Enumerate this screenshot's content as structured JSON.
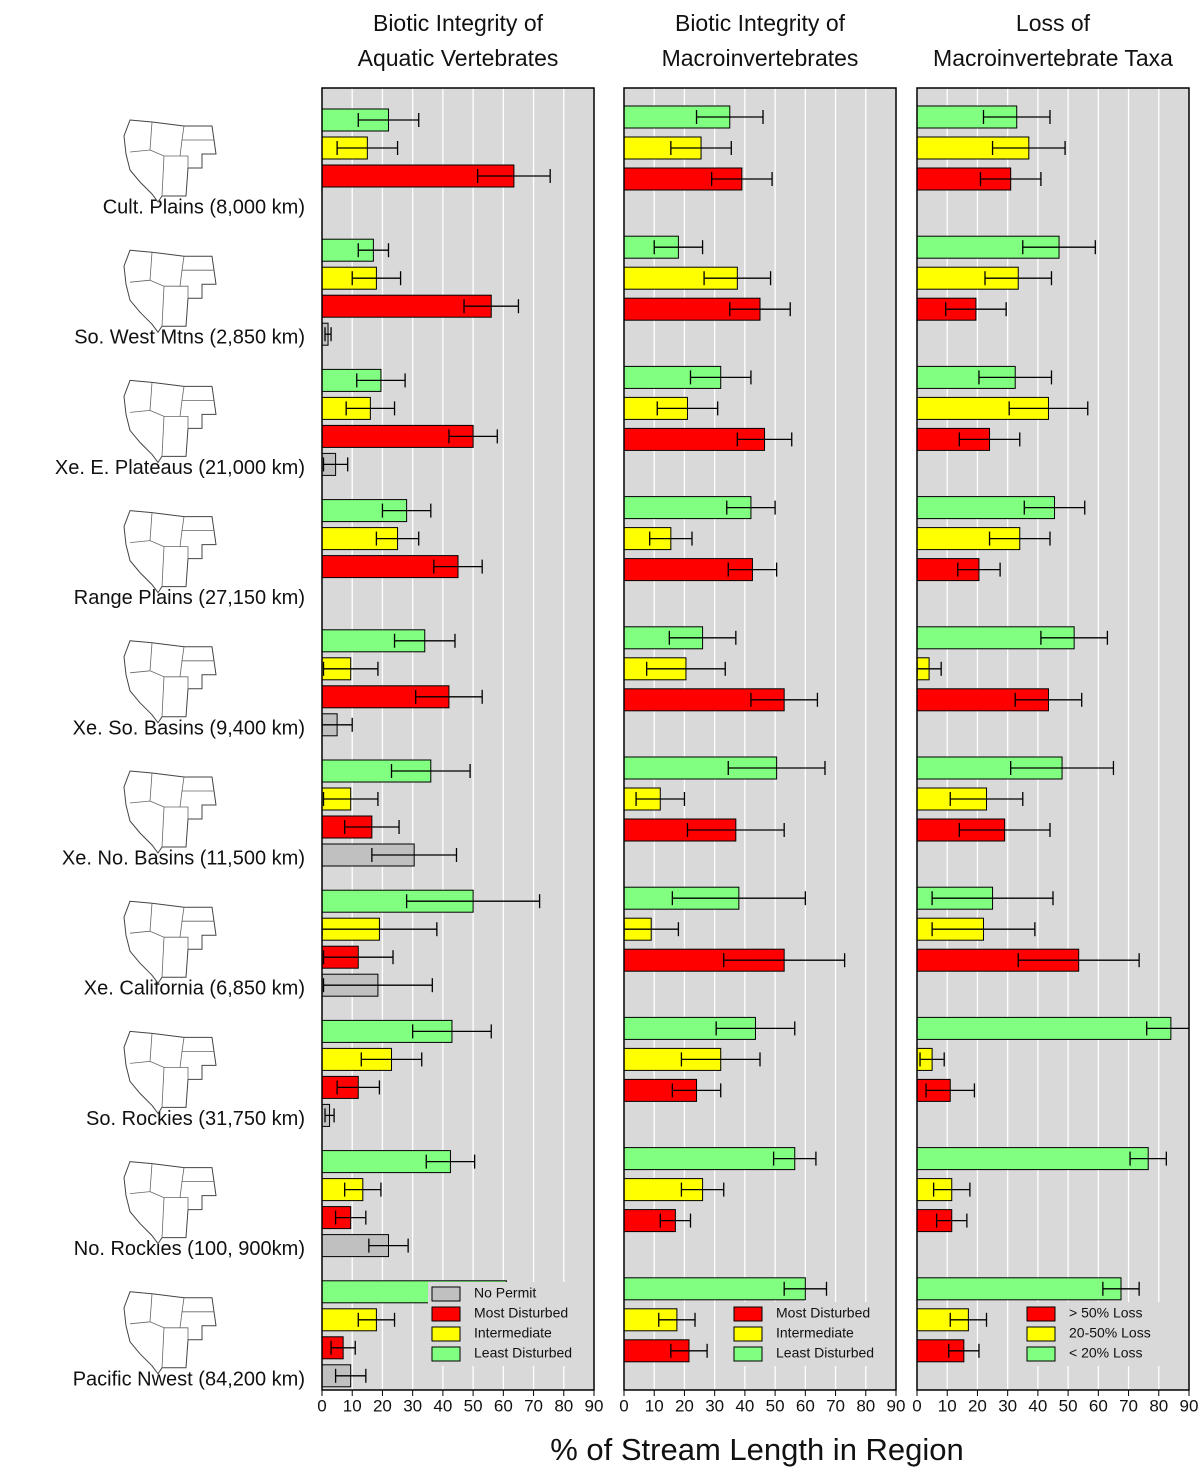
{
  "axis_label": "% of Stream Length in Region",
  "chart_data": [
    {
      "type": "bar",
      "orientation": "horizontal",
      "title": [
        "Biotic Integrity of",
        "Aquatic Vertebrates"
      ],
      "categories": [
        "Cult. Plains (8,000 km)",
        "So. West Mtns (2,850 km)",
        "Xe. E. Plateaus (21,000 km)",
        "Range Plains (27,150 km)",
        "Xe. So. Basins (9,400 km)",
        "Xe. No. Basins (11,500 km)",
        "Xe. California (6,850 km)",
        "So. Rockies (31,750 km)",
        "No. Rockies (100, 900km)",
        "Pacific Nwest (84,200 km)"
      ],
      "xlim": [
        0,
        90
      ],
      "xticks": [
        0,
        10,
        20,
        30,
        40,
        50,
        60,
        70,
        80,
        90
      ],
      "grid": true,
      "legend": "lower right",
      "series": [
        {
          "name": "No Permit",
          "color": "#c0c0c0",
          "values": [
            null,
            2,
            4.5,
            null,
            5,
            30.5,
            18.5,
            2.5,
            22,
            9.5
          ],
          "errors": [
            null,
            1,
            4,
            null,
            5,
            14,
            18,
            1.5,
            6.5,
            5
          ]
        },
        {
          "name": "Most Disturbed",
          "color": "#ff0000",
          "values": [
            63.5,
            56,
            50,
            45,
            42,
            16.5,
            12,
            12,
            9.5,
            7
          ],
          "errors": [
            12,
            9,
            8,
            8,
            11,
            9,
            11.5,
            7,
            5,
            4
          ]
        },
        {
          "name": "Intermediate",
          "color": "#ffff00",
          "values": [
            15,
            18,
            16,
            25,
            9.5,
            9.5,
            19,
            23,
            13.5,
            18
          ],
          "errors": [
            10,
            8,
            8,
            7,
            9,
            9,
            19,
            10,
            6,
            6
          ]
        },
        {
          "name": "Least Disturbed",
          "color": "#80ff80",
          "values": [
            22,
            17,
            19.5,
            28,
            34,
            36,
            50,
            43,
            42.5,
            61
          ],
          "errors": [
            10,
            5,
            8,
            8,
            10,
            13,
            22,
            13,
            8,
            9
          ]
        }
      ]
    },
    {
      "type": "bar",
      "orientation": "horizontal",
      "title": [
        "Biotic Integrity of",
        "Macroinvertebrates"
      ],
      "xlim": [
        0,
        90
      ],
      "xticks": [
        0,
        10,
        20,
        30,
        40,
        50,
        60,
        70,
        80,
        90
      ],
      "grid": true,
      "legend": "lower right",
      "series": [
        {
          "name": "Most Disturbed",
          "color": "#ff0000",
          "values": [
            39,
            45,
            46.5,
            42.5,
            53,
            37,
            53,
            24,
            17,
            21.5
          ],
          "errors": [
            10,
            10,
            9,
            8,
            11,
            16,
            20,
            8,
            5,
            6
          ]
        },
        {
          "name": "Intermediate",
          "color": "#ffff00",
          "values": [
            25.5,
            37.5,
            21,
            15.5,
            20.5,
            12,
            9,
            32,
            26,
            17.5
          ],
          "errors": [
            10,
            11,
            10,
            7,
            13,
            8,
            9,
            13,
            7,
            6
          ]
        },
        {
          "name": "Least Disturbed",
          "color": "#80ff80",
          "values": [
            35,
            18,
            32,
            42,
            26,
            50.5,
            38,
            43.5,
            56.5,
            60
          ],
          "errors": [
            11,
            8,
            10,
            8,
            11,
            16,
            22,
            13,
            7,
            7
          ]
        }
      ]
    },
    {
      "type": "bar",
      "orientation": "horizontal",
      "title": [
        "Loss of",
        "Macroinvertebrate Taxa"
      ],
      "xlim": [
        0,
        90
      ],
      "xticks": [
        0,
        10,
        20,
        30,
        40,
        50,
        60,
        70,
        80,
        90
      ],
      "grid": true,
      "legend": "lower right",
      "series": [
        {
          "name": "> 50% Loss",
          "color": "#ff0000",
          "values": [
            31,
            19.5,
            24,
            20.5,
            43.5,
            29,
            53.5,
            11,
            11.5,
            15.5
          ],
          "errors": [
            10,
            10,
            10,
            7,
            11,
            15,
            20,
            8,
            5,
            5
          ]
        },
        {
          "name": "20-50% Loss",
          "color": "#ffff00",
          "values": [
            37,
            33.5,
            43.5,
            34,
            4,
            23,
            22,
            5,
            11.5,
            17
          ],
          "errors": [
            12,
            11,
            13,
            10,
            4,
            12,
            17,
            4,
            6,
            6
          ]
        },
        {
          "name": "< 20% Loss",
          "color": "#80ff80",
          "values": [
            33,
            47,
            32.5,
            45.5,
            52,
            48,
            25,
            84,
            76.5,
            67.5
          ],
          "errors": [
            11,
            12,
            12,
            10,
            11,
            17,
            20,
            8,
            6,
            6
          ]
        }
      ]
    }
  ]
}
